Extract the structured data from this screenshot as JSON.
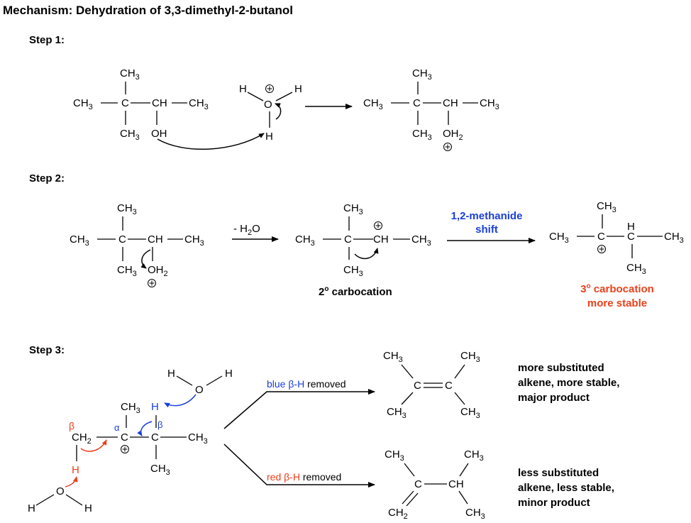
{
  "title": "Mechanism: Dehydration of 3,3-dimethyl-2-butanol",
  "steps": {
    "step1": "Step 1:",
    "step2": "Step 2:",
    "step3": "Step 3:"
  },
  "atoms": {
    "ch3": "CH",
    "three": "3",
    "c": "C",
    "ch": "CH",
    "oh": "OH",
    "o": "O",
    "h": "H",
    "two": "2",
    "plus": "+",
    "ch2": "CH",
    "alpha": "α",
    "beta": "β"
  },
  "labels": {
    "minus_h2o": "- H",
    "minus_h2o_sub": "2",
    "minus_h2o_end": "O",
    "shift_line1": "1,2-methanide",
    "shift_line2": "shift",
    "secondary": "2",
    "secondary_rest": " carbocation",
    "degree": "o",
    "tertiary": "3",
    "tertiary_rest": " carbocation",
    "more_stable": "more stable",
    "blue_removed_a": "blue ",
    "blue_removed_b": "β-H",
    "blue_removed_c": " removed",
    "red_removed_a": "red ",
    "red_removed_b": "β-H",
    "red_removed_c": " removed",
    "major_1": "more substituted",
    "major_2": "alkene, more stable,",
    "major_3": "major product",
    "minor_1": "less substituted",
    "minor_2": "alkene, less stable,",
    "minor_3": "minor product"
  },
  "colors": {
    "red": "#e8401c",
    "blue": "#1a3fd6",
    "black": "#000000"
  }
}
